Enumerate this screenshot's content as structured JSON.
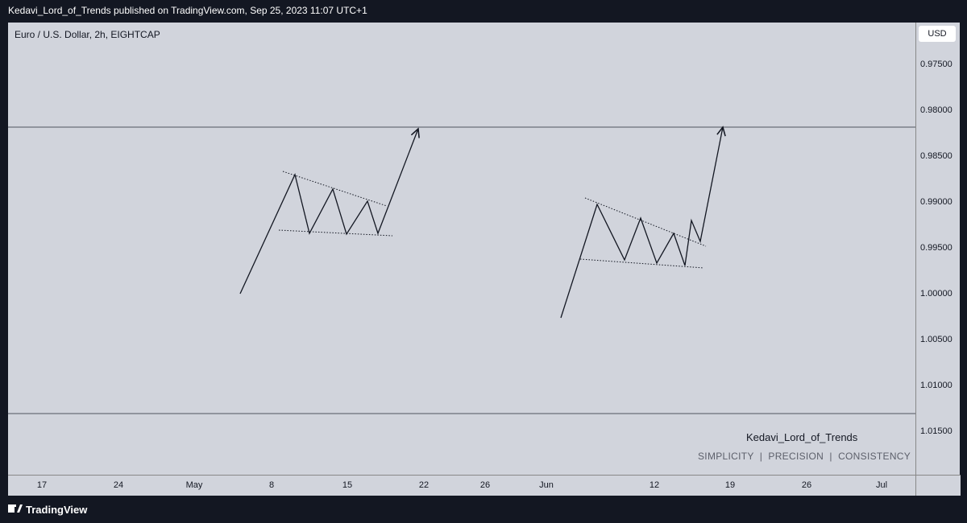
{
  "header": {
    "publisher": "Kedavi_Lord_of_Trends published on TradingView.com, Sep 25, 2023 11:07 UTC+1"
  },
  "chart": {
    "symbol": "Euro / U.S. Dollar, 2h, EIGHTCAP",
    "currency": "USD",
    "price_labels": [
      "0.97500",
      "0.98000",
      "0.98500",
      "0.99000",
      "0.99500",
      "1.00000",
      "1.00500",
      "1.01000",
      "1.01500"
    ],
    "time_labels": [
      "17",
      "24",
      "May",
      "8",
      "15",
      "22",
      "26",
      "Jun",
      "12",
      "19",
      "26",
      "Jul"
    ]
  },
  "watermark": {
    "name": "Kedavi_Lord_of_Trends",
    "tagline": "SIMPLICITY  |  PRECISION  |  CONSISTENCY"
  },
  "footer": {
    "brand": "TradingView"
  }
}
